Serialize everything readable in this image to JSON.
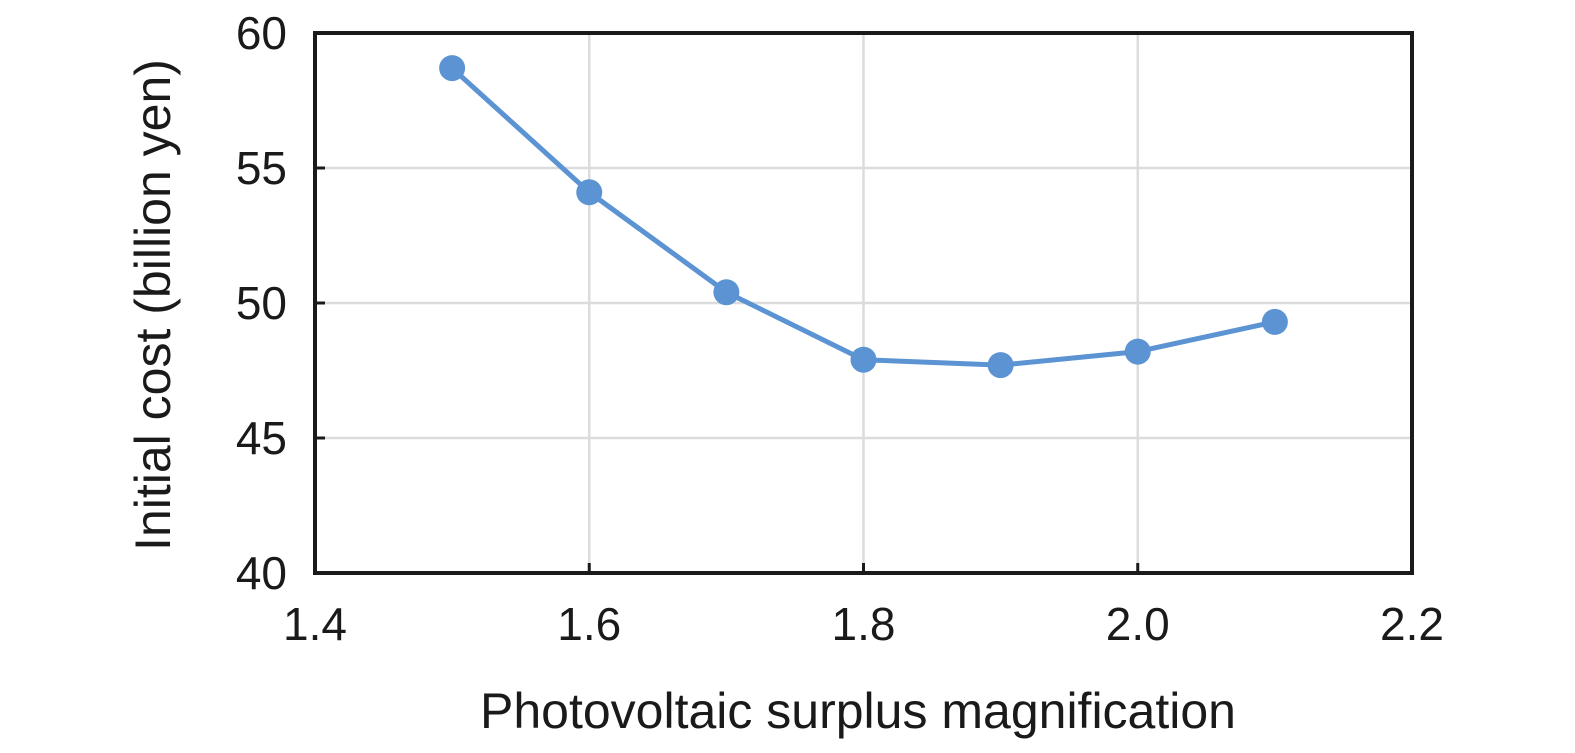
{
  "chart_data": {
    "type": "line",
    "title": "",
    "xlabel": "Photovoltaic surplus magnification",
    "ylabel": "Initial cost (billion yen)",
    "xlim": [
      1.4,
      2.2
    ],
    "ylim": [
      40,
      60
    ],
    "x_ticks": [
      "1.4",
      "1.6",
      "1.8",
      "2.0",
      "2.2"
    ],
    "y_ticks": [
      "40",
      "45",
      "50",
      "55",
      "60"
    ],
    "grid": true,
    "legend": "none",
    "series": [
      {
        "color": "#5b93d3",
        "x": [
          1.5,
          1.6,
          1.7,
          1.8,
          1.9,
          2.0,
          2.1
        ],
        "y": [
          58.7,
          54.1,
          50.4,
          47.9,
          47.7,
          48.2,
          49.3
        ]
      }
    ]
  }
}
